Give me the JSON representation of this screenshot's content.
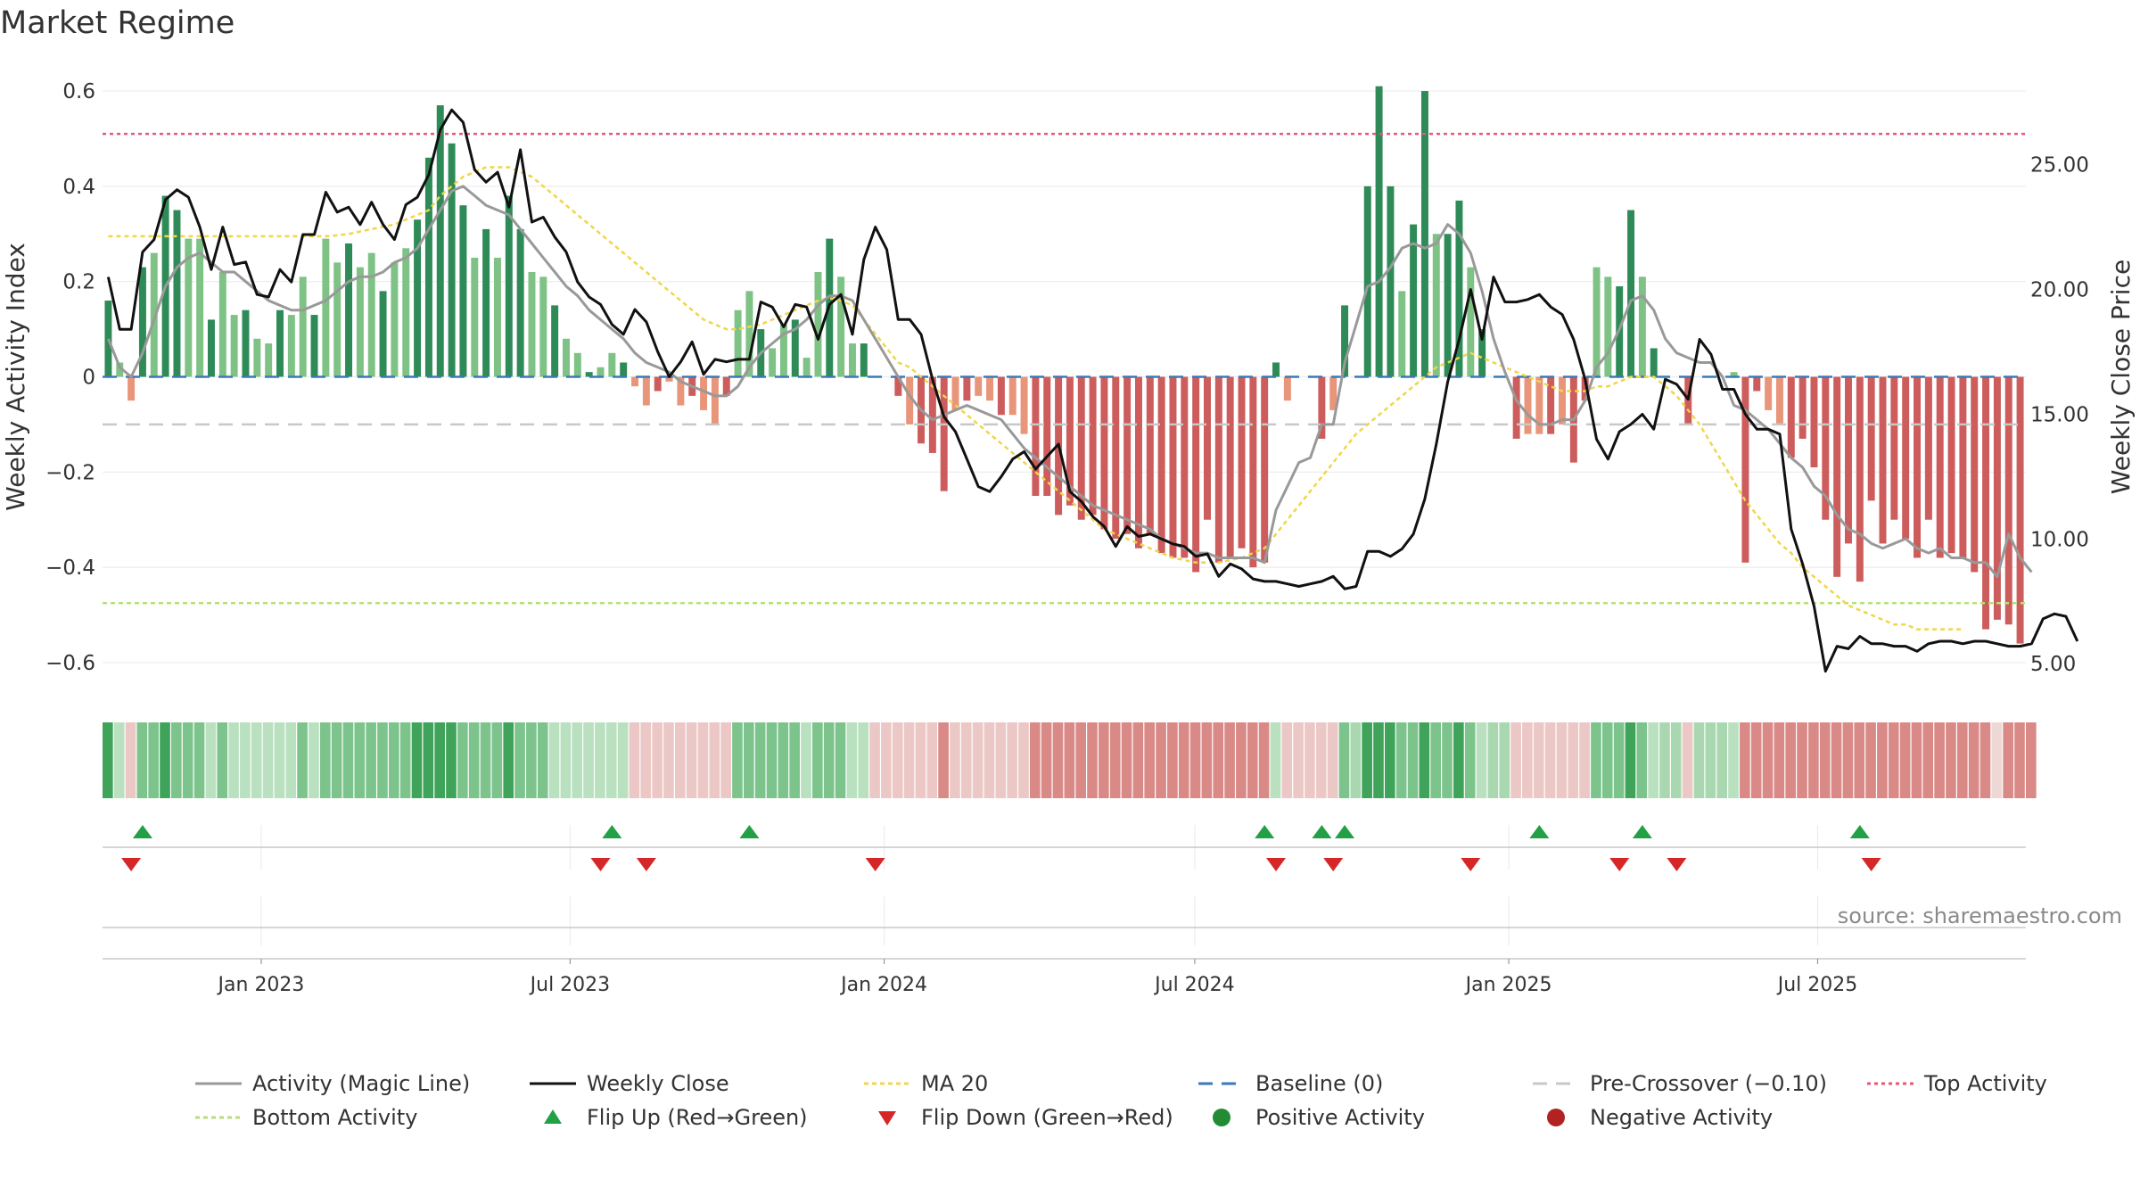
{
  "title": "Market Regime",
  "source": "source: sharemaestro.com",
  "colors": {
    "pos_dark": "#2e8b57",
    "pos_light": "#7fc285",
    "neg_dark": "#cd5c5c",
    "neg_light": "#e8957a",
    "activity_line": "#999999",
    "close_line": "#111111",
    "ma20": "#f0d64a",
    "baseline": "#3a7ab8",
    "precross": "#c8c8c8",
    "top": "#e8577a",
    "bottom": "#b6e07a",
    "flip_up": "#22a046",
    "flip_down": "#d62728"
  },
  "chart_data": {
    "type": "bar",
    "x_start": "2022-09-30",
    "x_end": "2025-10-31",
    "xticks": [
      "Jan 2023",
      "Jul 2023",
      "Jan 2024",
      "Jul 2024",
      "Jan 2025",
      "Jul 2025"
    ],
    "ylabel_left": "Weekly Activity Index",
    "ylabel_right": "Weekly Close Price",
    "ylim_left": [
      -0.66,
      0.66
    ],
    "ylim_right": [
      3.9,
      29.1
    ],
    "yticks_left": [
      "0.6",
      "0.4",
      "0.2",
      "0",
      "−0.2",
      "−0.4",
      "−0.6"
    ],
    "yticks_right": [
      "25.00",
      "20.00",
      "15.00",
      "10.00",
      "5.00"
    ],
    "reference_lines": {
      "baseline": 0,
      "pre_crossover": -0.1,
      "top_activity": 0.51,
      "bottom_activity": -0.475
    },
    "activity_bars": [
      0.16,
      0.03,
      -0.05,
      0.23,
      0.26,
      0.38,
      0.35,
      0.29,
      0.29,
      0.12,
      0.22,
      0.13,
      0.14,
      0.08,
      0.07,
      0.14,
      0.13,
      0.21,
      0.13,
      0.29,
      0.24,
      0.28,
      0.23,
      0.26,
      0.18,
      0.24,
      0.27,
      0.33,
      0.46,
      0.57,
      0.49,
      0.36,
      0.25,
      0.31,
      0.25,
      0.38,
      0.31,
      0.22,
      0.21,
      0.15,
      0.08,
      0.05,
      0.01,
      0.02,
      0.05,
      0.03,
      -0.02,
      -0.06,
      -0.03,
      -0.01,
      -0.06,
      -0.04,
      -0.07,
      -0.1,
      -0.04,
      0.14,
      0.18,
      0.1,
      0.06,
      0.11,
      0.12,
      0.04,
      0.22,
      0.29,
      0.21,
      0.07,
      0.07,
      0.0,
      0.0,
      -0.04,
      -0.1,
      -0.14,
      -0.16,
      -0.24,
      -0.07,
      -0.05,
      -0.04,
      -0.05,
      -0.08,
      -0.08,
      -0.12,
      -0.25,
      -0.25,
      -0.29,
      -0.27,
      -0.3,
      -0.29,
      -0.32,
      -0.34,
      -0.33,
      -0.36,
      -0.33,
      -0.37,
      -0.38,
      -0.38,
      -0.41,
      -0.3,
      -0.39,
      -0.38,
      -0.36,
      -0.4,
      -0.39,
      0.03,
      -0.05,
      0.0,
      0.0,
      -0.13,
      -0.07,
      0.15,
      0.0,
      0.4,
      0.61,
      0.4,
      0.18,
      0.32,
      0.6,
      0.3,
      0.3,
      0.37,
      0.23,
      0.1,
      0.0,
      0.0,
      -0.13,
      -0.12,
      -0.12,
      -0.12,
      -0.1,
      -0.18,
      -0.05,
      0.23,
      0.21,
      0.19,
      0.35,
      0.21,
      0.06,
      0.0,
      0.0,
      -0.1,
      0.0,
      0.0,
      0.0,
      0.01,
      -0.39,
      -0.03,
      -0.07,
      -0.1,
      -0.17,
      -0.13,
      -0.19,
      -0.3,
      -0.42,
      -0.35,
      -0.43,
      -0.26,
      -0.35,
      -0.3,
      -0.34,
      -0.38,
      -0.3,
      -0.38,
      -0.37,
      -0.38,
      -0.41,
      -0.53,
      -0.51,
      -0.52,
      -0.56
    ],
    "series": [
      {
        "name": "Activity (Magic Line)",
        "values": [
          0.08,
          0.02,
          0.0,
          0.05,
          0.12,
          0.19,
          0.23,
          0.25,
          0.26,
          0.24,
          0.22,
          0.22,
          0.2,
          0.18,
          0.16,
          0.15,
          0.14,
          0.14,
          0.15,
          0.16,
          0.18,
          0.2,
          0.21,
          0.21,
          0.22,
          0.24,
          0.25,
          0.27,
          0.31,
          0.35,
          0.39,
          0.4,
          0.38,
          0.36,
          0.35,
          0.34,
          0.31,
          0.28,
          0.25,
          0.22,
          0.19,
          0.17,
          0.14,
          0.12,
          0.1,
          0.08,
          0.05,
          0.03,
          0.02,
          0.01,
          -0.01,
          -0.02,
          -0.03,
          -0.04,
          -0.04,
          -0.02,
          0.02,
          0.05,
          0.07,
          0.09,
          0.1,
          0.12,
          0.15,
          0.17,
          0.17,
          0.16,
          0.12,
          0.08,
          0.04,
          0.0,
          -0.04,
          -0.07,
          -0.09,
          -0.08,
          -0.07,
          -0.06,
          -0.07,
          -0.08,
          -0.09,
          -0.12,
          -0.15,
          -0.17,
          -0.19,
          -0.21,
          -0.23,
          -0.25,
          -0.27,
          -0.28,
          -0.29,
          -0.3,
          -0.31,
          -0.32,
          -0.34,
          -0.35,
          -0.36,
          -0.37,
          -0.37,
          -0.38,
          -0.38,
          -0.38,
          -0.38,
          -0.39,
          -0.28,
          -0.23,
          -0.18,
          -0.17,
          -0.1,
          -0.1,
          0.03,
          0.11,
          0.19,
          0.2,
          0.23,
          0.27,
          0.28,
          0.27,
          0.28,
          0.32,
          0.3,
          0.26,
          0.18,
          0.08,
          0.01,
          -0.05,
          -0.08,
          -0.1,
          -0.1,
          -0.09,
          -0.09,
          -0.05,
          0.02,
          0.05,
          0.1,
          0.16,
          0.17,
          0.14,
          0.08,
          0.05,
          0.04,
          0.03,
          0.03,
          0.0,
          -0.06,
          -0.07,
          -0.09,
          -0.11,
          -0.14,
          -0.17,
          -0.19,
          -0.23,
          -0.25,
          -0.29,
          -0.32,
          -0.33,
          -0.35,
          -0.36,
          -0.35,
          -0.34,
          -0.36,
          -0.37,
          -0.36,
          -0.38,
          -0.38,
          -0.39,
          -0.39,
          -0.42,
          -0.33,
          -0.38,
          -0.41
        ]
      },
      {
        "name": "Weekly Close",
        "values": [
          20.5,
          18.4,
          18.4,
          21.5,
          22.0,
          23.6,
          24.0,
          23.7,
          22.5,
          20.8,
          22.5,
          21.0,
          21.1,
          19.8,
          19.7,
          20.8,
          20.3,
          22.2,
          22.2,
          23.9,
          23.1,
          23.3,
          22.6,
          23.5,
          22.6,
          22.0,
          23.4,
          23.7,
          24.6,
          26.4,
          27.2,
          26.7,
          24.8,
          24.3,
          24.7,
          23.3,
          25.6,
          22.7,
          22.9,
          22.1,
          21.5,
          20.3,
          19.7,
          19.4,
          18.6,
          18.2,
          19.2,
          18.7,
          17.5,
          16.5,
          17.1,
          17.9,
          16.6,
          17.2,
          17.1,
          17.2,
          17.2,
          19.5,
          19.3,
          18.5,
          19.4,
          19.3,
          18.0,
          19.4,
          19.8,
          18.2,
          21.2,
          22.5,
          21.6,
          18.8,
          18.8,
          18.2,
          16.4,
          14.9,
          14.3,
          13.2,
          12.1,
          11.9,
          12.5,
          13.2,
          13.5,
          12.8,
          13.3,
          13.8,
          11.9,
          11.5,
          10.9,
          10.5,
          9.7,
          10.5,
          10.1,
          10.2,
          10.0,
          9.8,
          9.7,
          9.3,
          9.4,
          8.5,
          9.0,
          8.8,
          8.4,
          8.3,
          8.3,
          8.2,
          8.1,
          8.2,
          8.3,
          8.5,
          8.0,
          8.1,
          9.5,
          9.5,
          9.3,
          9.6,
          10.2,
          11.6,
          13.8,
          16.3,
          18.0,
          20.0,
          18.0,
          20.5,
          19.5,
          19.5,
          19.6,
          19.8,
          19.3,
          19.0,
          18.0,
          16.4,
          14.0,
          13.2,
          14.3,
          14.6,
          15.0,
          14.4,
          16.4,
          16.2,
          15.6,
          18.0,
          17.4,
          16.0,
          16.0,
          15.0,
          14.4,
          14.4,
          14.2,
          10.4,
          9.0,
          7.3,
          4.7,
          5.7,
          5.6,
          6.1,
          5.8,
          5.8,
          5.7,
          5.7,
          5.5,
          5.8,
          5.9,
          5.9,
          5.8,
          5.9,
          5.9,
          5.8,
          5.7,
          5.7,
          5.8,
          6.8,
          7.0,
          6.9,
          5.9
        ]
      },
      {
        "name": "MA 20",
        "values": [
          0.295,
          0.295,
          0.295,
          0.295,
          0.295,
          0.295,
          0.295,
          0.295,
          0.295,
          0.295,
          0.295,
          0.295,
          0.295,
          0.295,
          0.295,
          0.295,
          0.295,
          0.295,
          0.295,
          0.295,
          0.297,
          0.3,
          0.305,
          0.31,
          0.315,
          0.32,
          0.33,
          0.34,
          0.35,
          0.38,
          0.4,
          0.42,
          0.43,
          0.44,
          0.44,
          0.44,
          0.43,
          0.42,
          0.4,
          0.38,
          0.36,
          0.34,
          0.32,
          0.3,
          0.28,
          0.26,
          0.24,
          0.22,
          0.2,
          0.18,
          0.16,
          0.14,
          0.12,
          0.11,
          0.1,
          0.1,
          0.105,
          0.11,
          0.12,
          0.13,
          0.14,
          0.15,
          0.16,
          0.165,
          0.16,
          0.15,
          0.12,
          0.09,
          0.06,
          0.03,
          0.02,
          0.0,
          -0.02,
          -0.04,
          -0.06,
          -0.08,
          -0.1,
          -0.12,
          -0.14,
          -0.16,
          -0.18,
          -0.2,
          -0.22,
          -0.24,
          -0.26,
          -0.28,
          -0.3,
          -0.32,
          -0.33,
          -0.34,
          -0.35,
          -0.36,
          -0.37,
          -0.38,
          -0.385,
          -0.39,
          -0.39,
          -0.39,
          -0.385,
          -0.38,
          -0.37,
          -0.36,
          -0.33,
          -0.3,
          -0.27,
          -0.24,
          -0.21,
          -0.18,
          -0.15,
          -0.12,
          -0.1,
          -0.08,
          -0.06,
          -0.04,
          -0.02,
          0.0,
          0.02,
          0.03,
          0.04,
          0.05,
          0.04,
          0.03,
          0.02,
          0.01,
          0.0,
          -0.01,
          -0.02,
          -0.03,
          -0.03,
          -0.03,
          -0.02,
          -0.02,
          -0.01,
          0.0,
          0.0,
          0.0,
          -0.02,
          -0.04,
          -0.07,
          -0.1,
          -0.14,
          -0.18,
          -0.22,
          -0.26,
          -0.29,
          -0.32,
          -0.35,
          -0.37,
          -0.4,
          -0.42,
          -0.44,
          -0.46,
          -0.48,
          -0.49,
          -0.5,
          -0.51,
          -0.52,
          -0.52,
          -0.53,
          -0.53,
          -0.53,
          -0.53,
          -0.53
        ]
      }
    ],
    "regime_strip": [
      2,
      0,
      -1,
      1,
      1,
      2,
      1,
      1,
      1,
      0,
      1,
      0,
      0,
      0,
      0,
      0,
      0,
      1,
      0,
      1,
      1,
      1,
      1,
      1,
      1,
      1,
      1,
      2,
      2,
      2,
      2,
      1,
      1,
      1,
      1,
      2,
      1,
      1,
      1,
      0,
      0,
      0,
      0,
      0,
      0,
      0,
      -1,
      -1,
      -1,
      -1,
      -1,
      -1,
      -1,
      -1,
      -1,
      1,
      1,
      1,
      1,
      1,
      1,
      0,
      1,
      1,
      1,
      0,
      0,
      -1,
      -1,
      -1,
      -1,
      -1,
      -1,
      -2,
      -1,
      -1,
      -1,
      -1,
      -1,
      -1,
      -1,
      -2,
      -2,
      -2,
      -2,
      -2,
      -2,
      -2,
      -2,
      -2,
      -2,
      -2,
      -2,
      -2,
      -2,
      -2,
      -2,
      -2,
      -2,
      -2,
      -2,
      -2,
      0,
      -1,
      -1,
      -1,
      -1,
      -1,
      1,
      0,
      2,
      2,
      2,
      1,
      1,
      2,
      1,
      1,
      2,
      1,
      0,
      0,
      0,
      -1,
      -1,
      -1,
      -1,
      -1,
      -1,
      -1,
      1,
      1,
      1,
      2,
      1,
      0,
      0,
      0,
      -1,
      0,
      0,
      0,
      0,
      -2,
      -2,
      -2,
      -2,
      -2,
      -2,
      -2,
      -2,
      -2,
      -2,
      -2,
      -2,
      -2,
      -2,
      -2,
      -2,
      -2,
      -2,
      -2,
      -2,
      -2,
      -2,
      0,
      -2,
      -2,
      -2
    ],
    "flips_up": [
      3,
      44,
      56,
      101,
      106,
      108,
      125,
      134,
      153
    ],
    "flips_down": [
      2,
      43,
      47,
      67,
      102,
      107,
      119,
      132,
      137,
      154
    ]
  },
  "legend": [
    {
      "key": "magic",
      "label": "Activity (Magic Line)"
    },
    {
      "key": "close",
      "label": "Weekly Close"
    },
    {
      "key": "ma20",
      "label": "MA 20"
    },
    {
      "key": "baseline",
      "label": "Baseline (0)"
    },
    {
      "key": "precross",
      "label": "Pre-Crossover (−0.10)"
    },
    {
      "key": "top",
      "label": "Top Activity"
    },
    {
      "key": "bottom",
      "label": "Bottom Activity"
    },
    {
      "key": "flipup",
      "label": "Flip Up (Red→Green)"
    },
    {
      "key": "flipdown",
      "label": "Flip Down (Green→Red)"
    },
    {
      "key": "posact",
      "label": "Positive Activity"
    },
    {
      "key": "negact",
      "label": "Negative Activity"
    }
  ]
}
